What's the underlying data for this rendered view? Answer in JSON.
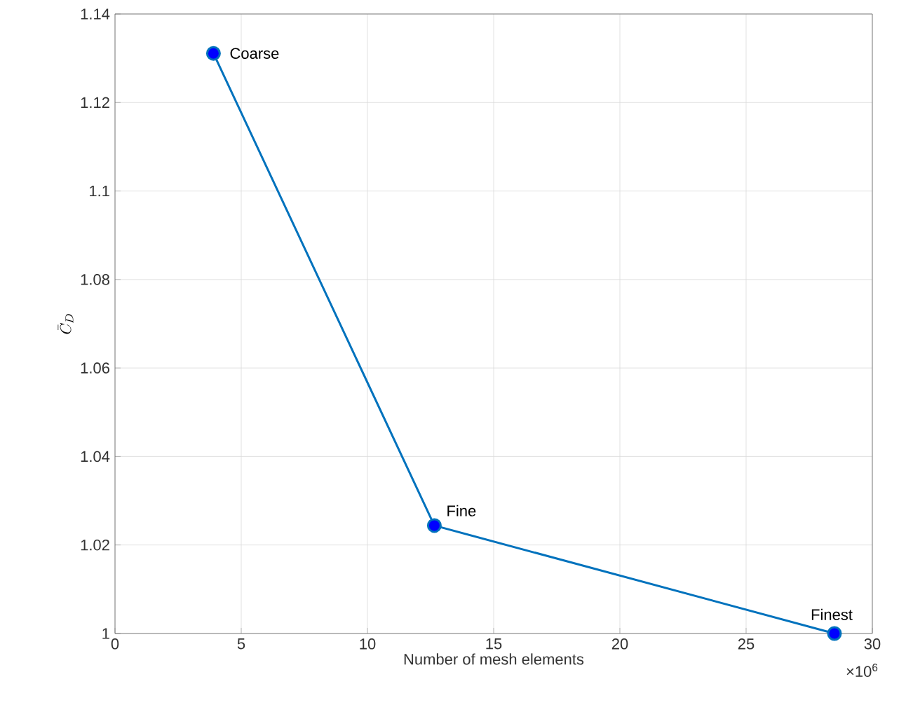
{
  "chart_data": {
    "type": "line",
    "xlabel": "Number of mesh elements",
    "ylabel": "\\bar{C}_D",
    "x": [
      3.9,
      12.65,
      28.5
    ],
    "series": [
      {
        "color": "#0072bd",
        "values": [
          1.1311,
          1.0244,
          1.0
        ]
      }
    ],
    "xlim": [
      0,
      30
    ],
    "ylim": [
      1,
      1.14
    ],
    "xticks": [
      0,
      5,
      10,
      15,
      20,
      25,
      30
    ],
    "yticks": [
      1,
      1.02,
      1.04,
      1.06,
      1.08,
      1.1,
      1.12,
      1.14
    ],
    "grid": true,
    "marker": "circle",
    "line_style": "solid",
    "annotations": [
      {
        "text": "Coarse",
        "x": 3.9,
        "y": 1.1311
      },
      {
        "text": "Fine",
        "x": 12.65,
        "y": 1.0244
      },
      {
        "text": "Finest",
        "x": 28.5,
        "y": 1.0
      },
      "×10$^{6}$"
    ]
  }
}
